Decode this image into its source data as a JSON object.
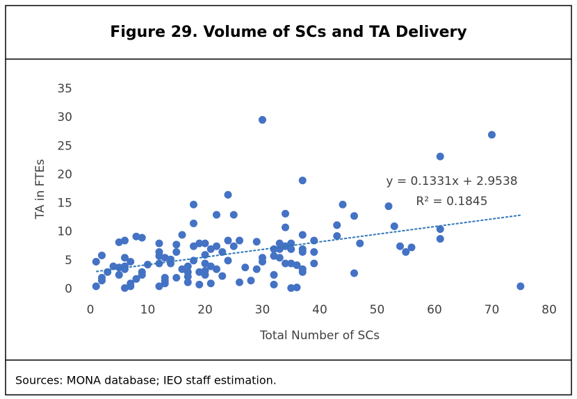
{
  "chart_data": {
    "type": "scatter",
    "title": "Figure 29. Volume of SCs and TA Delivery",
    "x_label": "Total Number of SCs",
    "y_label": "TA in FTEs",
    "color": "#4472c4",
    "x": [
      1,
      1,
      2,
      2,
      2,
      3,
      4,
      5,
      5,
      5,
      6,
      6,
      6,
      6,
      6,
      7,
      7,
      7,
      8,
      8,
      9,
      9,
      9,
      10,
      12,
      12,
      12,
      12,
      12,
      13,
      13,
      13,
      13,
      14,
      14,
      15,
      15,
      15,
      16,
      16,
      17,
      17,
      17,
      17,
      18,
      18,
      18,
      18,
      19,
      19,
      19,
      20,
      20,
      20,
      20,
      20,
      21,
      21,
      21,
      22,
      22,
      22,
      23,
      23,
      24,
      24,
      24,
      25,
      25,
      26,
      26,
      27,
      28,
      29,
      29,
      30,
      30,
      30,
      32,
      32,
      32,
      32,
      33,
      33,
      33,
      34,
      34,
      34,
      34,
      35,
      35,
      35,
      35,
      36,
      36,
      37,
      37,
      37,
      37,
      37,
      37,
      39,
      39,
      39,
      43,
      43,
      44,
      46,
      46,
      47,
      52,
      53,
      54,
      55,
      56,
      61,
      61,
      61,
      70,
      75
    ],
    "values": [
      0.5,
      4.8,
      1.5,
      2,
      5.9,
      3,
      4,
      2.5,
      3.8,
      8.2,
      8.5,
      5.5,
      4,
      0.2,
      3.5,
      1,
      4.8,
      0.5,
      9.2,
      1.8,
      9,
      3,
      2.5,
      4.3,
      8,
      6.5,
      4.5,
      0.5,
      5.8,
      1,
      2,
      5.5,
      1.5,
      4.5,
      5.2,
      7.8,
      6.5,
      2,
      9.5,
      3.5,
      4,
      3,
      2.2,
      1.2,
      14.8,
      11.5,
      7.5,
      5,
      8,
      3,
      0.8,
      8,
      6,
      4.5,
      3.2,
      2.5,
      7,
      4,
      1,
      13,
      7.5,
      3.5,
      6.5,
      2.3,
      16.5,
      8.5,
      5,
      13,
      7.5,
      8.5,
      1.2,
      3.8,
      1.5,
      8.3,
      3.5,
      29.6,
      5.5,
      4.8,
      7,
      5.8,
      2.5,
      0.8,
      8,
      7,
      5.5,
      13.2,
      10.8,
      7.5,
      4.5,
      8,
      7,
      4.5,
      0.2,
      4.2,
      0.3,
      19,
      9.5,
      7,
      6.5,
      3.5,
      3,
      8.5,
      6.5,
      4.5,
      11.2,
      9.3,
      14.8,
      12.8,
      2.8,
      8,
      14.5,
      11,
      7.5,
      6.5,
      7.3,
      23.2,
      10.5,
      8.8,
      27,
      0.5
    ],
    "xlim": [
      0,
      80
    ],
    "xticks": [
      0,
      10,
      20,
      30,
      40,
      50,
      60,
      70,
      80
    ],
    "ylim": [
      0,
      35
    ],
    "yticks": [
      0,
      5,
      10,
      15,
      20,
      25,
      30,
      35
    ],
    "grid": false,
    "trendline": {
      "slope": 0.1331,
      "intercept": 2.9538,
      "color": "#2e75b6",
      "equation": "y = 0.1331x + 2.9538",
      "r_squared": "R² = 0.1845"
    },
    "source": "Sources: MONA database; IEO staff estimation."
  }
}
